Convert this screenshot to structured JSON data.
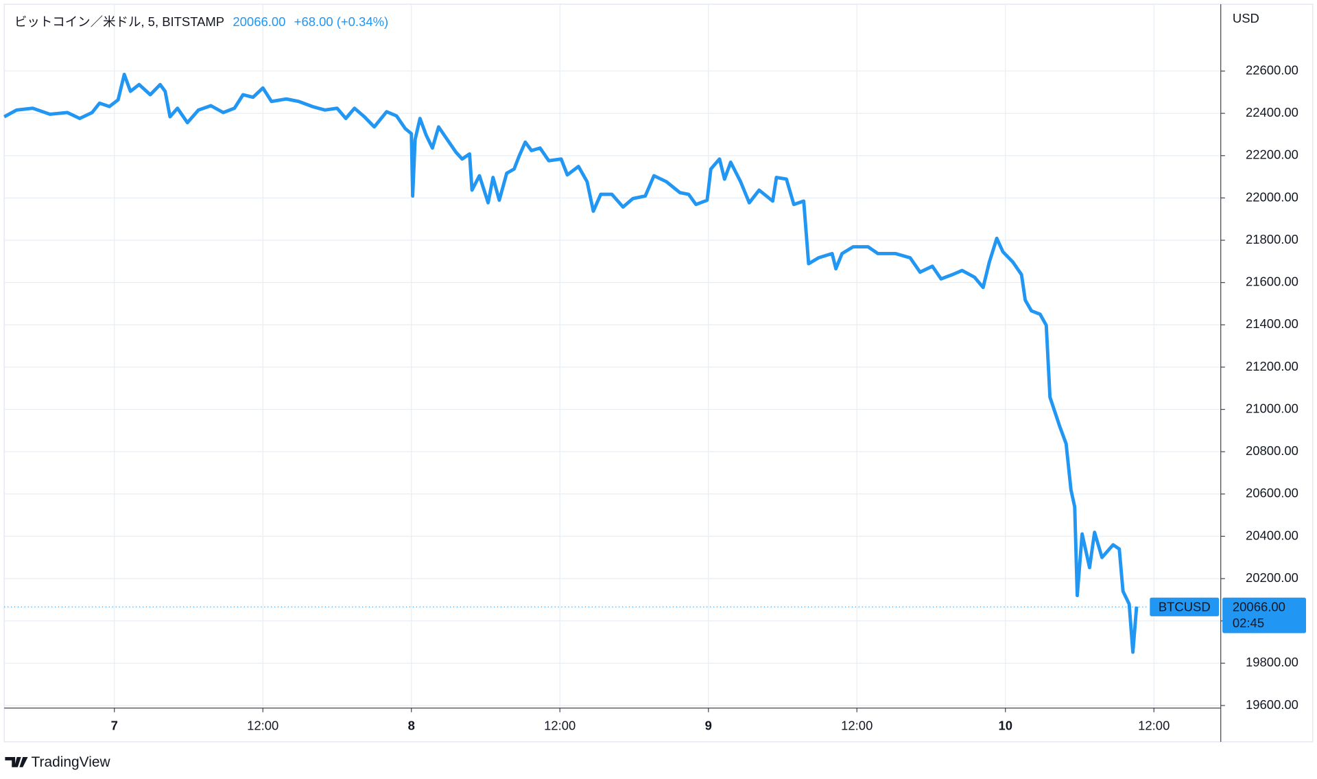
{
  "chart_data": {
    "type": "line",
    "title": "ビットコイン／米ドル, 5, BITSTAMP",
    "last_value": "20066.00",
    "change": "+68.00 (+0.34%)",
    "y_unit": "USD",
    "brand": "TradingView",
    "current_price": {
      "value": 20066,
      "label": "20066.00",
      "countdown": "02:45"
    },
    "x": [
      -8.9,
      -7.9,
      -6.6,
      -5.2,
      -3.8,
      -2.8,
      -1.8,
      -1.2,
      -0.4,
      0.3,
      0.8,
      1.3,
      2.0,
      2.9,
      3.7,
      4.1,
      4.5,
      5.1,
      5.9,
      6.8,
      7.8,
      8.8,
      9.7,
      10.4,
      11.2,
      12.0,
      12.7,
      13.9,
      14.9,
      16.0,
      17.0,
      18.0,
      18.7,
      19.4,
      20.2,
      21.0,
      22.0,
      22.8,
      23.5,
      24.0,
      24.1,
      24.3,
      24.7,
      25.2,
      25.7,
      26.2,
      26.9,
      27.6,
      28.1,
      28.7,
      28.9,
      29.5,
      30.2,
      30.6,
      31.1,
      31.7,
      32.3,
      32.7,
      33.2,
      33.7,
      34.4,
      35.1,
      36.1,
      36.6,
      37.5,
      38.2,
      38.7,
      39.3,
      40.2,
      41.1,
      41.9,
      42.9,
      43.6,
      44.6,
      45.7,
      46.4,
      47.0,
      47.9,
      48.2,
      48.9,
      49.3,
      49.8,
      50.6,
      51.3,
      52.1,
      53.2,
      53.5,
      54.3,
      54.9,
      55.7,
      56.1,
      56.9,
      58.0,
      58.3,
      58.8,
      59.7,
      60.9,
      61.7,
      63.1,
      64.3,
      65.1,
      66.1,
      66.8,
      67.7,
      68.5,
      69.5,
      70.2,
      70.7,
      71.3,
      71.8,
      72.6,
      73.3,
      73.6,
      74.1,
      74.8,
      75.3,
      75.6,
      76.4,
      76.9,
      77.3,
      77.6,
      77.8,
      78.2,
      78.8,
      79.2,
      79.8,
      80.7,
      81.2,
      81.5,
      82.0,
      82.3,
      82.6
    ],
    "series": [
      {
        "name": "BTCUSD",
        "color": "#2196f3",
        "values": [
          22384,
          22416,
          22424,
          22396,
          22404,
          22376,
          22404,
          22448,
          22432,
          22464,
          22584,
          22504,
          22536,
          22488,
          22536,
          22504,
          22384,
          22424,
          22356,
          22416,
          22436,
          22404,
          22424,
          22488,
          22476,
          22520,
          22456,
          22468,
          22456,
          22432,
          22416,
          22424,
          22376,
          22424,
          22384,
          22336,
          22408,
          22388,
          22328,
          22304,
          22009,
          22276,
          22376,
          22296,
          22236,
          22336,
          22276,
          22216,
          22184,
          22208,
          22037,
          22105,
          21977,
          22097,
          21989,
          22117,
          22137,
          22197,
          22264,
          22224,
          22236,
          22176,
          22184,
          22109,
          22149,
          22077,
          21937,
          22017,
          22017,
          21957,
          21997,
          22009,
          22105,
          22077,
          22025,
          22017,
          21969,
          21989,
          22137,
          22184,
          22089,
          22169,
          22077,
          21977,
          22037,
          21985,
          22097,
          22089,
          21969,
          21985,
          21689,
          21717,
          21737,
          21665,
          21737,
          21769,
          21769,
          21737,
          21737,
          21717,
          21649,
          21677,
          21617,
          21637,
          21657,
          21625,
          21577,
          21697,
          21809,
          21745,
          21697,
          21637,
          21517,
          21466,
          21450,
          21398,
          21058,
          20918,
          20838,
          20619,
          20539,
          20120,
          20411,
          20252,
          20419,
          20300,
          20360,
          20340,
          20140,
          20080,
          19852,
          20068
        ]
      }
    ],
    "xlim": [
      -8.9,
      89.4
    ],
    "xticks": [
      {
        "value": 0,
        "label": "7"
      },
      {
        "value": 12,
        "label": "12:00"
      },
      {
        "value": 24,
        "label": "8"
      },
      {
        "value": 36,
        "label": "12:00"
      },
      {
        "value": 48,
        "label": "9"
      },
      {
        "value": 60,
        "label": "12:00"
      },
      {
        "value": 72,
        "label": "10"
      },
      {
        "value": 84,
        "label": "12:00"
      }
    ],
    "ylim": [
      19588,
      22916
    ],
    "yticks": [
      {
        "value": 19600,
        "label": "19600.00"
      },
      {
        "value": 19800,
        "label": "19800.00"
      },
      {
        "value": 20000,
        "label": "20000.00"
      },
      {
        "value": 20200,
        "label": "20200.00"
      },
      {
        "value": 20400,
        "label": "20400.00"
      },
      {
        "value": 20600,
        "label": "20600.00"
      },
      {
        "value": 20800,
        "label": "20800.00"
      },
      {
        "value": 21000,
        "label": "21000.00"
      },
      {
        "value": 21200,
        "label": "21200.00"
      },
      {
        "value": 21400,
        "label": "21400.00"
      },
      {
        "value": 21600,
        "label": "21600.00"
      },
      {
        "value": 21800,
        "label": "21800.00"
      },
      {
        "value": 22000,
        "label": "22000.00"
      },
      {
        "value": 22200,
        "label": "22200.00"
      },
      {
        "value": 22400,
        "label": "22400.00"
      },
      {
        "value": 22600,
        "label": "22600.00"
      }
    ],
    "grid": true
  }
}
